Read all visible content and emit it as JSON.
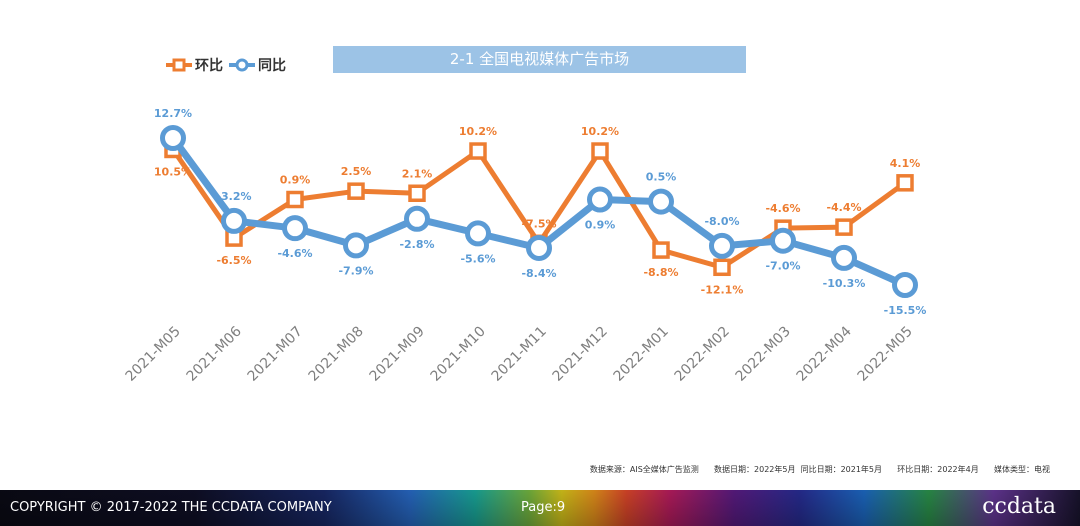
{
  "colors": {
    "mom": "#ed7d31",
    "yoy": "#5b9bd5",
    "title_bg": "#9cc3e6"
  },
  "chart_data": {
    "type": "line",
    "title": "2-1 全国电视媒体广告市场",
    "categories": [
      "2021-M05",
      "2021-M06",
      "2021-M07",
      "2021-M08",
      "2021-M09",
      "2021-M10",
      "2021-M11",
      "2021-M12",
      "2022-M01",
      "2022-M02",
      "2022-M03",
      "2022-M04",
      "2022-M05"
    ],
    "series": [
      {
        "name": "环比",
        "values": [
          10.5,
          -6.5,
          0.9,
          2.5,
          2.1,
          10.2,
          -7.5,
          10.2,
          -8.8,
          -12.1,
          -4.6,
          -4.4,
          4.1
        ],
        "labels": [
          "10.5%",
          "-6.5%",
          "0.9%",
          "2.5%",
          "2.1%",
          "10.2%",
          "-7.5%",
          "10.2%",
          "-8.8%",
          "-12.1%",
          "-4.6%",
          "-4.4%",
          "4.1%"
        ]
      },
      {
        "name": "同比",
        "values": [
          12.7,
          -3.2,
          -4.6,
          -7.9,
          -2.8,
          -5.6,
          -8.4,
          0.9,
          0.5,
          -8.0,
          -7.0,
          -10.3,
          -15.5
        ],
        "labels": [
          "12.7%",
          "-3.2%",
          "-4.6%",
          "-7.9%",
          "-2.8%",
          "-5.6%",
          "-8.4%",
          "0.9%",
          "0.5%",
          "-8.0%",
          "-7.0%",
          "-10.3%",
          "-15.5%"
        ]
      }
    ],
    "legend": "top-left",
    "grid": false
  },
  "footer": {
    "note": "数据来源：AIS全媒体广告监测      数据日期：2022年5月  同比日期：2021年5月      环比日期：2022年4月      媒体类型：电视",
    "copyright": "COPYRIGHT © 2017-2022 THE CCDATA COMPANY",
    "page": "Page:9",
    "brand": "ccdata"
  }
}
